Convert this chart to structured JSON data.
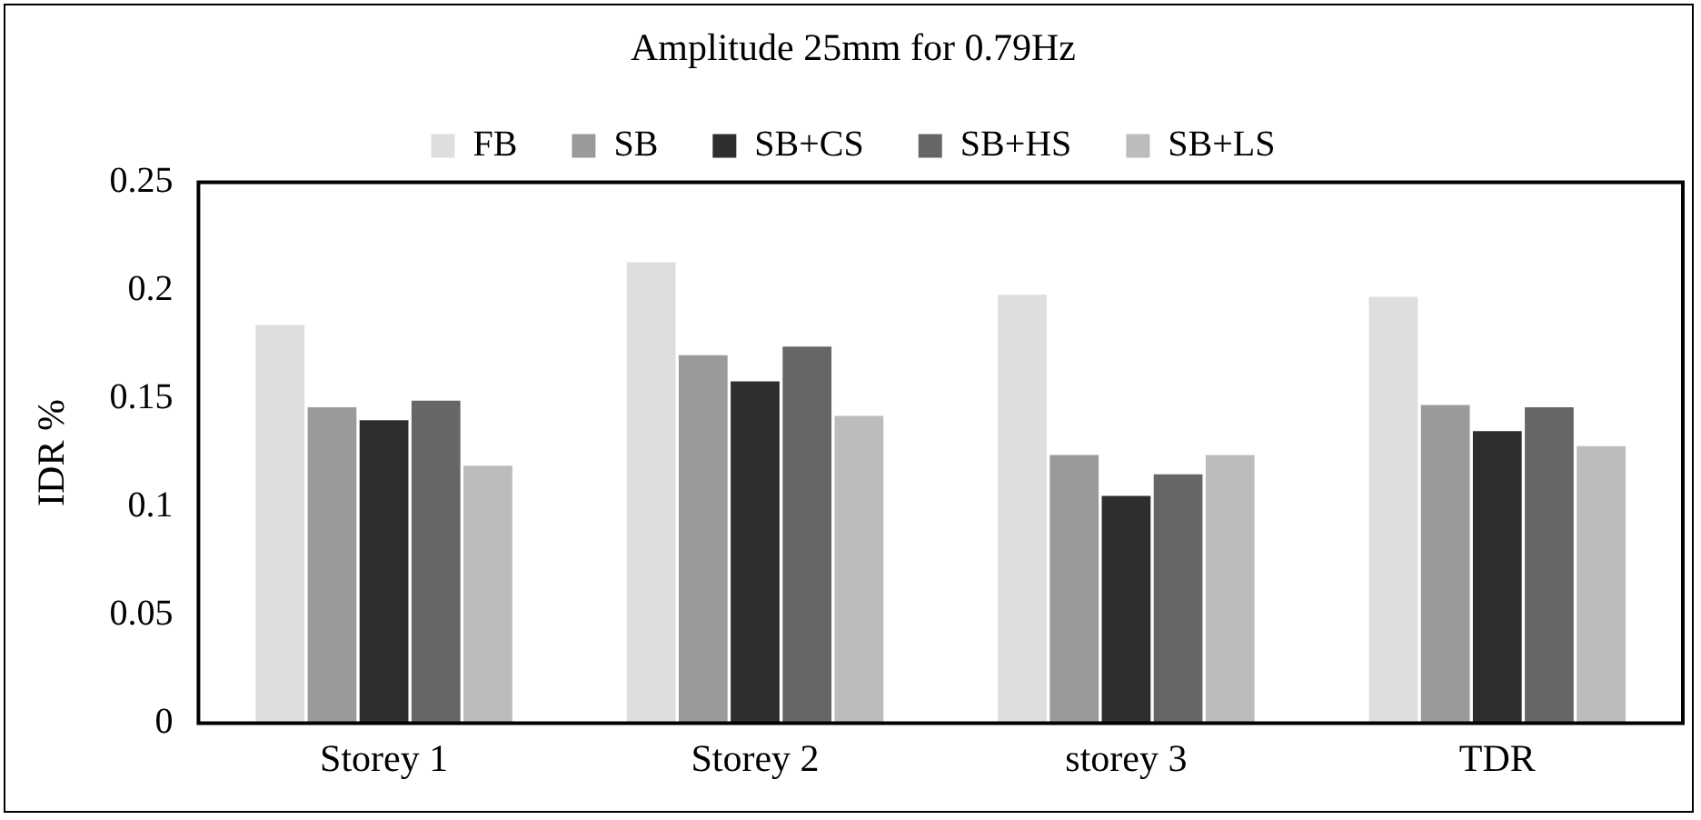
{
  "chart_data": {
    "type": "bar",
    "title": "Amplitude 25mm for 0.79Hz",
    "ylabel": "IDR %",
    "categories": [
      "Storey 1",
      "Storey 2",
      "storey 3",
      "TDR"
    ],
    "series": [
      {
        "name": "FB",
        "color": "#dedede",
        "values": [
          0.184,
          0.213,
          0.198,
          0.197
        ]
      },
      {
        "name": "SB",
        "color": "#9a9a9a",
        "values": [
          0.146,
          0.17,
          0.124,
          0.147
        ]
      },
      {
        "name": "SB+CS",
        "color": "#2e2e2e",
        "values": [
          0.14,
          0.158,
          0.105,
          0.135
        ]
      },
      {
        "name": "SB+HS",
        "color": "#666666",
        "values": [
          0.149,
          0.174,
          0.115,
          0.146
        ]
      },
      {
        "name": "SB+LS",
        "color": "#bcbcbc",
        "values": [
          0.119,
          0.142,
          0.124,
          0.128
        ]
      }
    ],
    "ylim": [
      0,
      0.25
    ],
    "yticks": [
      0,
      0.05,
      0.1,
      0.15,
      0.2,
      0.25
    ],
    "grid": false,
    "legend": "top"
  }
}
